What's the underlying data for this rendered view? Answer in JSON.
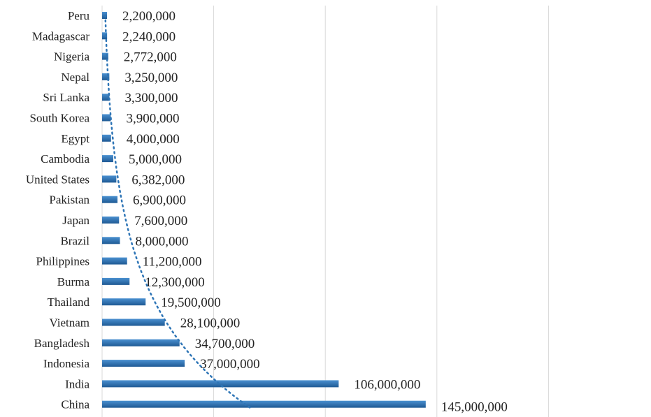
{
  "chart_data": {
    "type": "bar",
    "orientation": "horizontal",
    "title": "",
    "xlabel": "",
    "ylabel": "",
    "categories": [
      "Peru",
      "Madagascar",
      "Nigeria",
      "Nepal",
      "Sri Lanka",
      "South Korea",
      "Egypt",
      "Cambodia",
      "United States",
      "Pakistan",
      "Japan",
      "Brazil",
      "Philippines",
      "Burma",
      "Thailand",
      "Vietnam",
      "Bangladesh",
      "Indonesia",
      "India",
      "China"
    ],
    "values": [
      2200000,
      2240000,
      2772000,
      3250000,
      3300000,
      3900000,
      4000000,
      5000000,
      6382000,
      6900000,
      7600000,
      8000000,
      11200000,
      12300000,
      19500000,
      28100000,
      34700000,
      37000000,
      106000000,
      145000000
    ],
    "value_labels": [
      "2,200,000",
      "2,240,000",
      "2,772,000",
      "3,250,000",
      "3,300,000",
      "3,900,000",
      "4,000,000",
      "5,000,000",
      "6,382,000",
      "6,900,000",
      "7,600,000",
      "8,000,000",
      "11,200,000",
      "12,300,000",
      "19,500,000",
      "28,100,000",
      "34,700,000",
      "37,000,000",
      "106,000,000",
      "145,000,000"
    ],
    "xlim": [
      0,
      250000000
    ],
    "gridlines": [
      0,
      50000000,
      100000000,
      150000000,
      200000000
    ],
    "grid": true,
    "legend": "none",
    "trendline": "exponential, dotted",
    "bar_color": "#2e75b6",
    "trend_color": "#2e75b6"
  }
}
